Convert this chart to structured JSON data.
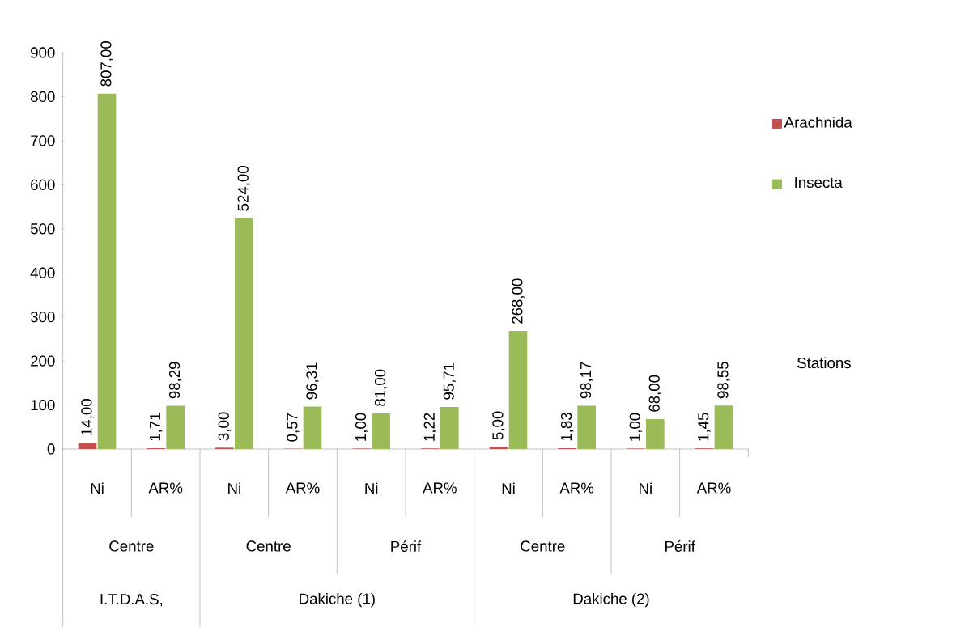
{
  "chart_data": {
    "type": "bar",
    "categories": [
      "Ni",
      "AR%",
      "Ni",
      "AR%",
      "Ni",
      "AR%",
      "Ni",
      "AR%",
      "Ni",
      "AR%"
    ],
    "series": [
      {
        "name": "Arachnida",
        "color": "#c0504d",
        "values": [
          14,
          1.71,
          3,
          0.57,
          1,
          1.22,
          5,
          1.83,
          1,
          1.45
        ],
        "value_labels": [
          "14,00",
          "1,71",
          "3,00",
          "0,57",
          "1,00",
          "1,22",
          "5,00",
          "1,83",
          "1,00",
          "1,45"
        ]
      },
      {
        "name": "Insecta",
        "color": "#9bbb59",
        "values": [
          807,
          98.29,
          524,
          96.31,
          81,
          95.71,
          268,
          98.17,
          68,
          98.55
        ],
        "value_labels": [
          "807,00",
          "98,29",
          "524,00",
          "96,31",
          "81,00",
          "95,71",
          "268,00",
          "98,17",
          "68,00",
          "98,55"
        ]
      }
    ],
    "xlabel": "Stations",
    "annotations": [
      "Centre",
      "Centre",
      "Périf",
      "Centre",
      "Périf",
      "I.T.D.A.S,",
      "Dakiche  (1)",
      "Dakiche (2)"
    ],
    "ylim": [
      0,
      900
    ],
    "yticks": [
      0,
      100,
      200,
      300,
      400,
      500,
      600,
      700,
      800,
      900
    ],
    "legend": "right",
    "grid": false
  }
}
